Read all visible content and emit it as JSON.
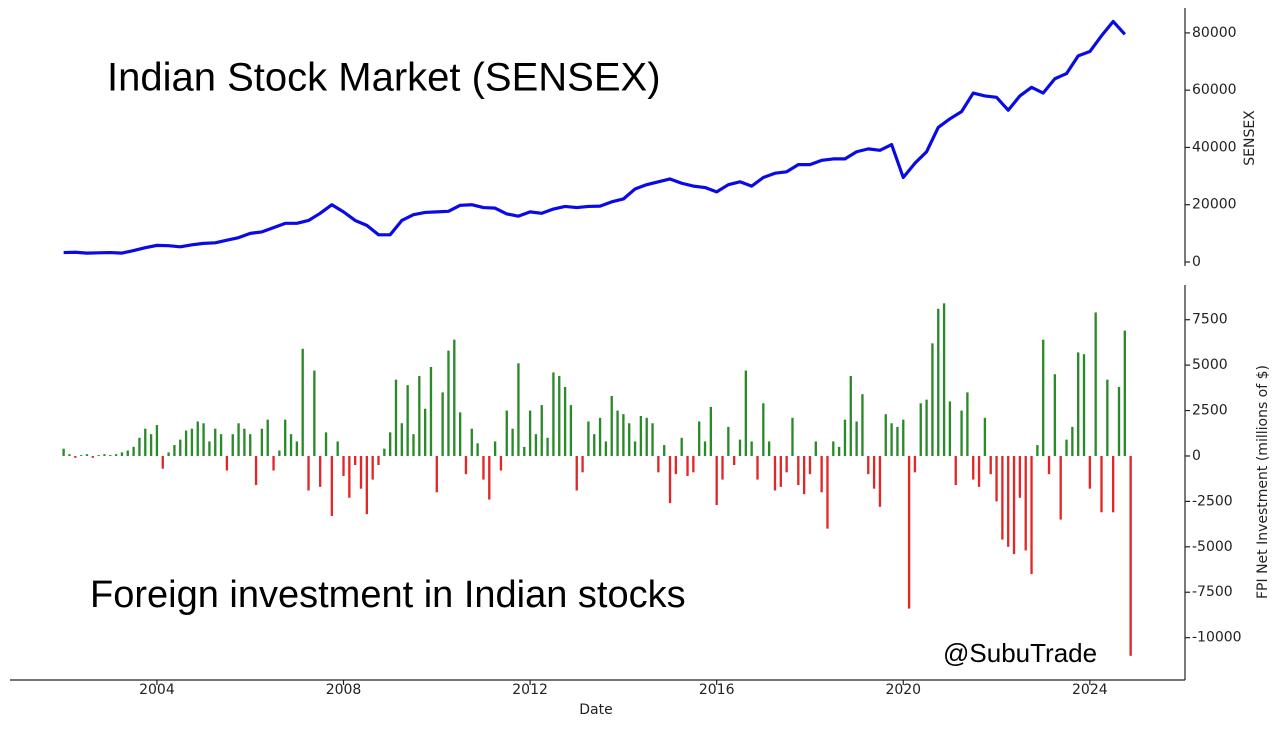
{
  "chart_data": [
    {
      "type": "line",
      "title": "Indian Stock Market (SENSEX)",
      "ylabel": "SENSEX",
      "color": "#0a0ae6",
      "xlim": [
        2000.85,
        2026.04
      ],
      "ylim": [
        -1400,
        88700
      ],
      "yticks": [
        0,
        20000,
        40000,
        60000,
        80000
      ],
      "x": [
        2002,
        2002.25,
        2002.5,
        2002.75,
        2003,
        2003.25,
        2003.5,
        2003.75,
        2004,
        2004.25,
        2004.5,
        2004.75,
        2005,
        2005.25,
        2005.5,
        2005.75,
        2006,
        2006.25,
        2006.5,
        2006.75,
        2007,
        2007.25,
        2007.5,
        2007.75,
        2008,
        2008.25,
        2008.5,
        2008.75,
        2009,
        2009.25,
        2009.5,
        2009.75,
        2010,
        2010.25,
        2010.5,
        2010.75,
        2011,
        2011.25,
        2011.5,
        2011.75,
        2012,
        2012.25,
        2012.5,
        2012.75,
        2013,
        2013.25,
        2013.5,
        2013.75,
        2014,
        2014.25,
        2014.5,
        2014.75,
        2015,
        2015.25,
        2015.5,
        2015.75,
        2016,
        2016.25,
        2016.5,
        2016.75,
        2017,
        2017.25,
        2017.5,
        2017.75,
        2018,
        2018.25,
        2018.5,
        2018.75,
        2019,
        2019.25,
        2019.5,
        2019.75,
        2020,
        2020.25,
        2020.5,
        2020.75,
        2021,
        2021.25,
        2021.5,
        2021.75,
        2022,
        2022.25,
        2022.5,
        2022.75,
        2023,
        2023.25,
        2023.5,
        2023.75,
        2024,
        2024.25,
        2024.5,
        2024.75
      ],
      "values": [
        3300,
        3400,
        3100,
        3200,
        3300,
        3100,
        4000,
        5000,
        5800,
        5700,
        5300,
        6000,
        6500,
        6700,
        7600,
        8500,
        10000,
        10500,
        12000,
        13500,
        13500,
        14500,
        17000,
        20000,
        17500,
        14500,
        12800,
        9500,
        9500,
        14500,
        16500,
        17300,
        17500,
        17700,
        19800,
        20000,
        19000,
        18800,
        16800,
        16000,
        17500,
        17000,
        18500,
        19400,
        19000,
        19400,
        19500,
        21000,
        22000,
        25500,
        27000,
        28000,
        29000,
        27500,
        26500,
        26000,
        24500,
        27000,
        28000,
        26500,
        29500,
        31000,
        31500,
        34000,
        34000,
        35500,
        36000,
        36000,
        38500,
        39500,
        39000,
        41000,
        29500,
        34500,
        38500,
        47000,
        50000,
        52500,
        59000,
        58000,
        57500,
        53000,
        58000,
        61000,
        59000,
        64000,
        65800,
        72000,
        73500,
        79000,
        84000,
        79500
      ]
    },
    {
      "type": "bar",
      "title": "Foreign investment in Indian stocks",
      "annotation": "@SubuTrade",
      "ylabel": "FPI Net Investment (millions of $)",
      "xlabel": "Date",
      "positive_color": "#2a8a2a",
      "negative_color": "#e02828",
      "xlim": [
        2000.85,
        2026.04
      ],
      "xticks": [
        2004,
        2008,
        2012,
        2016,
        2020,
        2024
      ],
      "ylim": [
        -12330,
        9410
      ],
      "yticks": [
        -10000,
        -7500,
        -5000,
        -2500,
        0,
        2500,
        5000,
        7500
      ],
      "x": [
        2002,
        2002.125,
        2002.25,
        2002.375,
        2002.5,
        2002.625,
        2002.75,
        2002.875,
        2003,
        2003.125,
        2003.25,
        2003.375,
        2003.5,
        2003.625,
        2003.75,
        2003.875,
        2004,
        2004.125,
        2004.25,
        2004.375,
        2004.5,
        2004.625,
        2004.75,
        2004.875,
        2005,
        2005.125,
        2005.25,
        2005.375,
        2005.5,
        2005.625,
        2005.75,
        2005.875,
        2006,
        2006.125,
        2006.25,
        2006.375,
        2006.5,
        2006.625,
        2006.75,
        2006.875,
        2007,
        2007.125,
        2007.25,
        2007.375,
        2007.5,
        2007.625,
        2007.75,
        2007.875,
        2008,
        2008.125,
        2008.25,
        2008.375,
        2008.5,
        2008.625,
        2008.75,
        2008.875,
        2009,
        2009.125,
        2009.25,
        2009.375,
        2009.5,
        2009.625,
        2009.75,
        2009.875,
        2010,
        2010.125,
        2010.25,
        2010.375,
        2010.5,
        2010.625,
        2010.75,
        2010.875,
        2011,
        2011.125,
        2011.25,
        2011.375,
        2011.5,
        2011.625,
        2011.75,
        2011.875,
        2012,
        2012.125,
        2012.25,
        2012.375,
        2012.5,
        2012.625,
        2012.75,
        2012.875,
        2013,
        2013.125,
        2013.25,
        2013.375,
        2013.5,
        2013.625,
        2013.75,
        2013.875,
        2014,
        2014.125,
        2014.25,
        2014.375,
        2014.5,
        2014.625,
        2014.75,
        2014.875,
        2015,
        2015.125,
        2015.25,
        2015.375,
        2015.5,
        2015.625,
        2015.75,
        2015.875,
        2016,
        2016.125,
        2016.25,
        2016.375,
        2016.5,
        2016.625,
        2016.75,
        2016.875,
        2017,
        2017.125,
        2017.25,
        2017.375,
        2017.5,
        2017.625,
        2017.75,
        2017.875,
        2018,
        2018.125,
        2018.25,
        2018.375,
        2018.5,
        2018.625,
        2018.75,
        2018.875,
        2019,
        2019.125,
        2019.25,
        2019.375,
        2019.5,
        2019.625,
        2019.75,
        2019.875,
        2020,
        2020.125,
        2020.25,
        2020.375,
        2020.5,
        2020.625,
        2020.75,
        2020.875,
        2021,
        2021.125,
        2021.25,
        2021.375,
        2021.5,
        2021.625,
        2021.75,
        2021.875,
        2022,
        2022.125,
        2022.25,
        2022.375,
        2022.5,
        2022.625,
        2022.75,
        2022.875,
        2023,
        2023.125,
        2023.25,
        2023.375,
        2023.5,
        2023.625,
        2023.75,
        2023.875,
        2024,
        2024.125,
        2024.25,
        2024.375,
        2024.5,
        2024.625,
        2024.75,
        2024.875
      ],
      "values": [
        400,
        100,
        -100,
        50,
        100,
        -100,
        50,
        100,
        50,
        100,
        200,
        300,
        500,
        1000,
        1500,
        1200,
        1700,
        -700,
        200,
        600,
        900,
        1400,
        1500,
        1900,
        1800,
        800,
        1500,
        1200,
        -800,
        1200,
        1800,
        1500,
        1200,
        -1600,
        1500,
        2000,
        -800,
        300,
        2000,
        1200,
        800,
        5900,
        -1900,
        4700,
        -1700,
        1300,
        -3300,
        800,
        -1100,
        -2300,
        -500,
        -1800,
        -3200,
        -1300,
        -500,
        400,
        1300,
        4200,
        1800,
        3900,
        1200,
        4400,
        2600,
        4900,
        -2000,
        3500,
        5800,
        6400,
        2400,
        -1000,
        1500,
        700,
        -1300,
        -2400,
        800,
        -800,
        2500,
        1500,
        5100,
        500,
        2500,
        1200,
        2800,
        1000,
        4600,
        4400,
        3800,
        2800,
        -1900,
        -900,
        1900,
        1200,
        2100,
        800,
        3300,
        2500,
        2300,
        1800,
        800,
        2200,
        2100,
        1800,
        -900,
        600,
        -2600,
        -1000,
        1000,
        -1100,
        -900,
        1900,
        800,
        2700,
        -2700,
        -1300,
        1600,
        -500,
        900,
        4700,
        800,
        -1300,
        2900,
        800,
        -1900,
        -1700,
        -900,
        2100,
        -1600,
        -2100,
        -1000,
        800,
        -2000,
        -4000,
        800,
        500,
        2000,
        4400,
        1900,
        3400,
        -1000,
        -1800,
        -2800,
        2300,
        1800,
        1600,
        2000,
        -8400,
        -900,
        2900,
        3100,
        6200,
        8100,
        8400,
        3000,
        -1600,
        2500,
        3500,
        -1300,
        -1700,
        2100,
        -1000,
        -2500,
        -4600,
        -5000,
        -5400,
        -2300,
        -5200,
        -6500,
        600,
        6400,
        -1000,
        4500,
        -3500,
        900,
        1600,
        5700,
        5600,
        -1800,
        7900,
        -3100,
        4200,
        -3100,
        3800,
        6900,
        -11000
      ]
    }
  ]
}
